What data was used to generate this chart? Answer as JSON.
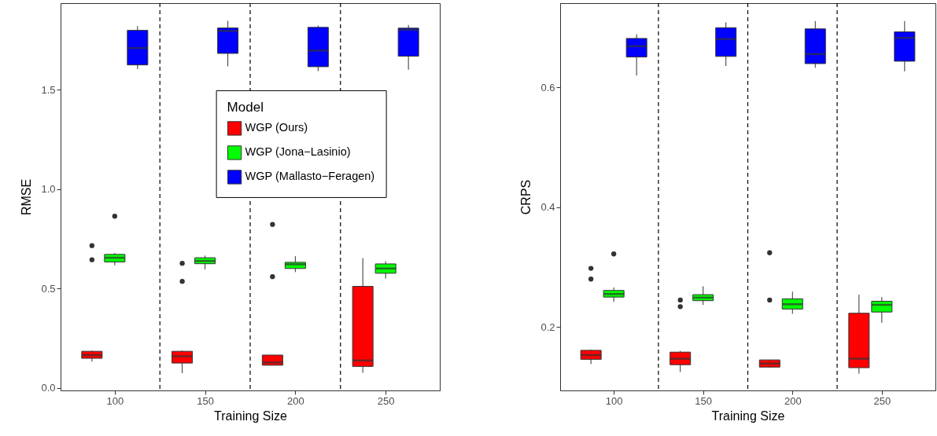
{
  "chart_data": [
    {
      "type": "box",
      "xlabel": "Training Size",
      "ylabel": "RMSE",
      "x": [
        100,
        150,
        200,
        250
      ],
      "xlim": [
        70,
        280
      ],
      "xticks": [
        100,
        150,
        200,
        250
      ],
      "ylim": [
        -0.013,
        1.937
      ],
      "yticks": [
        {
          "value": 0,
          "label": "0.0"
        },
        {
          "value": 0.5,
          "label": "0.5"
        },
        {
          "value": 1,
          "label": "1.0"
        },
        {
          "value": 1.5,
          "label": "1.5"
        }
      ],
      "legend": "top right",
      "legend_title": "Model",
      "ref_lines": [
        {
          "axis": "x",
          "value": 125,
          "line_style": "dashed"
        },
        {
          "axis": "x",
          "value": 175,
          "line_style": "dashed"
        },
        {
          "axis": "x",
          "value": 225,
          "line_style": "dashed"
        }
      ],
      "series": [
        {
          "name": "WGP (Ours)",
          "color": "#ff0000",
          "boxes": [
            {
              "low": 0.132,
              "q1": 0.149,
              "median": 0.165,
              "q3": 0.184,
              "high": 0.187,
              "outliers": [
                0.716,
                0.645
              ]
            },
            {
              "low": 0.074,
              "q1": 0.125,
              "median": 0.159,
              "q3": 0.184,
              "high": 0.188,
              "outliers": [
                0.627,
                0.536
              ]
            },
            {
              "low": 0.114,
              "q1": 0.114,
              "median": 0.128,
              "q3": 0.165,
              "high": 0.165,
              "outliers": [
                0.823,
                0.56
              ]
            },
            {
              "low": 0.076,
              "q1": 0.108,
              "median": 0.138,
              "q3": 0.511,
              "high": 0.653
            }
          ]
        },
        {
          "name": "WGP (Jona−Lasinio)",
          "color": "#00ff00",
          "boxes": [
            {
              "low": 0.617,
              "q1": 0.634,
              "median": 0.655,
              "q3": 0.672,
              "high": 0.679,
              "outliers": [
                0.864
              ]
            },
            {
              "low": 0.597,
              "q1": 0.625,
              "median": 0.639,
              "q3": 0.655,
              "high": 0.666
            },
            {
              "low": 0.583,
              "q1": 0.601,
              "median": 0.622,
              "q3": 0.632,
              "high": 0.663
            },
            {
              "low": 0.55,
              "q1": 0.577,
              "median": 0.601,
              "q3": 0.624,
              "high": 0.637
            }
          ]
        },
        {
          "name": "WGP (Mallasto−Feragen)",
          "color": "#0000ff",
          "boxes": [
            {
              "low": 1.605,
              "q1": 1.626,
              "median": 1.711,
              "q3": 1.8,
              "high": 1.821
            },
            {
              "low": 1.619,
              "q1": 1.684,
              "median": 1.797,
              "q3": 1.812,
              "high": 1.848
            },
            {
              "low": 1.595,
              "q1": 1.617,
              "median": 1.698,
              "q3": 1.815,
              "high": 1.824
            },
            {
              "low": 1.602,
              "q1": 1.67,
              "median": 1.803,
              "q3": 1.811,
              "high": 1.827
            }
          ]
        }
      ]
    },
    {
      "type": "box",
      "xlabel": "Training Size",
      "ylabel": "CRPS",
      "x": [
        100,
        150,
        200,
        250
      ],
      "xlim": [
        70,
        280
      ],
      "xticks": [
        100,
        150,
        200,
        250
      ],
      "ylim": [
        0.094,
        0.741
      ],
      "yticks": [
        0.2,
        0.4,
        0.6
      ],
      "legend": false,
      "ref_lines": [
        {
          "axis": "x",
          "value": 125,
          "line_style": "dashed"
        },
        {
          "axis": "x",
          "value": 175,
          "line_style": "dashed"
        },
        {
          "axis": "x",
          "value": 225,
          "line_style": "dashed"
        }
      ],
      "series": [
        {
          "color": "#ff0000",
          "boxes": [
            {
              "low": 0.138,
              "q1": 0.146,
              "median": 0.153,
              "q3": 0.161,
              "high": 0.162,
              "outliers": [
                0.298,
                0.28
              ]
            },
            {
              "low": 0.125,
              "q1": 0.137,
              "median": 0.147,
              "q3": 0.158,
              "high": 0.16,
              "outliers": [
                0.245,
                0.234
              ]
            },
            {
              "low": 0.132,
              "q1": 0.133,
              "median": 0.139,
              "q3": 0.145,
              "high": 0.145,
              "outliers": [
                0.324,
                0.245
              ]
            },
            {
              "low": 0.122,
              "q1": 0.132,
              "median": 0.147,
              "q3": 0.223,
              "high": 0.254
            }
          ]
        },
        {
          "color": "#00ff00",
          "boxes": [
            {
              "low": 0.242,
              "q1": 0.25,
              "median": 0.255,
              "q3": 0.261,
              "high": 0.266,
              "outliers": [
                0.322
              ]
            },
            {
              "low": 0.237,
              "q1": 0.244,
              "median": 0.249,
              "q3": 0.254,
              "high": 0.268
            },
            {
              "low": 0.222,
              "q1": 0.23,
              "median": 0.238,
              "q3": 0.247,
              "high": 0.259
            },
            {
              "low": 0.207,
              "q1": 0.225,
              "median": 0.237,
              "q3": 0.243,
              "high": 0.25
            }
          ]
        },
        {
          "color": "#0000ff",
          "boxes": [
            {
              "low": 0.62,
              "q1": 0.651,
              "median": 0.669,
              "q3": 0.682,
              "high": 0.689
            },
            {
              "low": 0.636,
              "q1": 0.652,
              "median": 0.681,
              "q3": 0.7,
              "high": 0.709
            },
            {
              "low": 0.633,
              "q1": 0.64,
              "median": 0.656,
              "q3": 0.698,
              "high": 0.711
            },
            {
              "low": 0.627,
              "q1": 0.644,
              "median": 0.683,
              "q3": 0.693,
              "high": 0.711
            }
          ]
        }
      ]
    }
  ]
}
